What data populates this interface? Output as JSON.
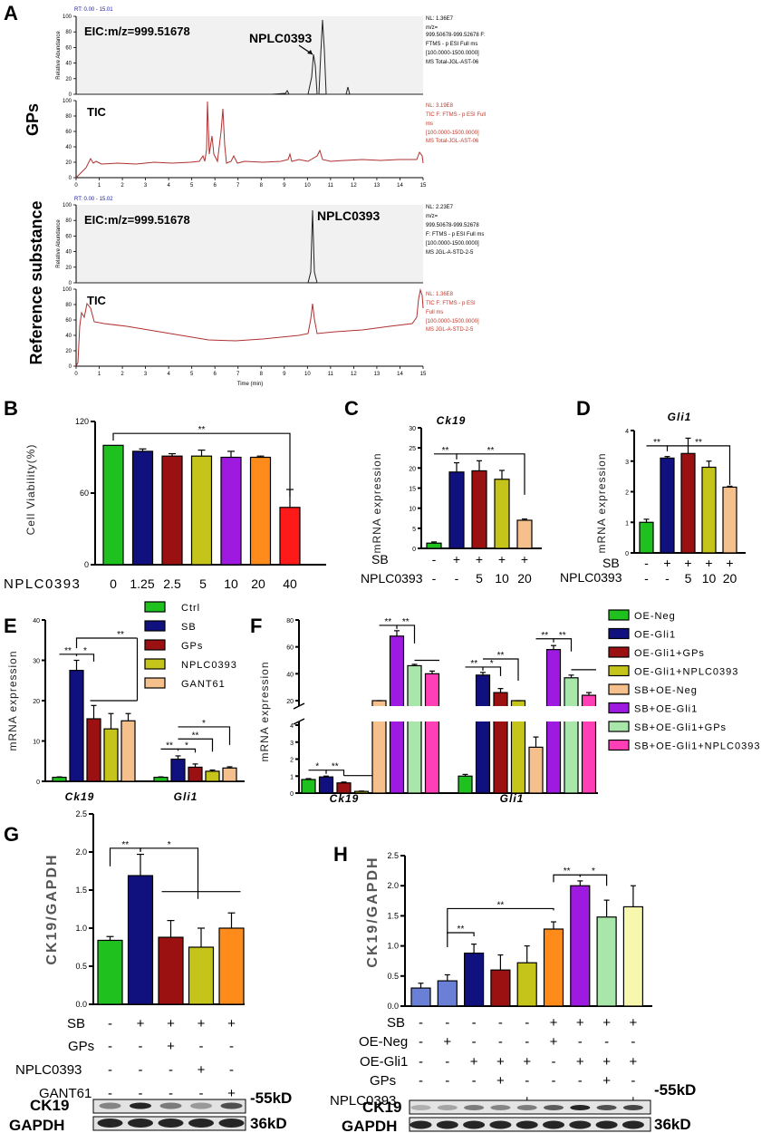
{
  "panelA": {
    "letter": "A",
    "gps_label": "GPs",
    "ref_label": "Reference substance",
    "rt1": "RT: 0.00 - 15.01",
    "rt2": "RT: 0.00 - 15.02",
    "eic_label": "EIC:m/z=999.51678",
    "tic_label": "TIC",
    "nplc_label": "NPLC0393",
    "yaxis_label": "Relative Abundance",
    "xaxis_label": "Time (min)",
    "y_ticks": [
      "0",
      "20",
      "40",
      "60",
      "80",
      "100"
    ],
    "x_ticks": [
      "0",
      "1",
      "2",
      "3",
      "4",
      "5",
      "6",
      "7",
      "8",
      "9",
      "10",
      "11",
      "12",
      "13",
      "14",
      "15"
    ],
    "info1": [
      "NL: 1.36E7",
      "m/z=",
      "999.50678-999.52678 F:",
      "FTMS - p ESI Full ms",
      "[100.0000-1500.0000]",
      "MS Total-JGL-AST-06"
    ],
    "info2": [
      "NL: 3.19E8",
      "TIC F: FTMS - p ESI Full",
      "ms",
      "[100.0000-1500.0000]",
      "MS Total-JGL-AST-06"
    ],
    "info3": [
      "NL: 2.23E7",
      "m/z=",
      "999.50678-999.52678",
      "F: FTMS - p ESI Full ms",
      "[100.0000-1500.0000]",
      "MS JGL-A-STD-2-5"
    ],
    "info4": [
      "NL: 1.36E8",
      "TIC F: FTMS - p ESI",
      "Full ms",
      "[100.0000-1500.0000]",
      "MS JGL-A-STD-2-5"
    ]
  },
  "colors": {
    "green": "#1fc11f",
    "navy": "#10107f",
    "darkred": "#9b1010",
    "olive": "#c4c41a",
    "orange": "#ff8c1a",
    "purple": "#9e1ae0",
    "peach": "#f5c08c",
    "red": "#ff1a1a",
    "mint": "#a9e6a9",
    "pink": "#ff3fb5",
    "lightyellow": "#f7f7ae",
    "slate": "#6a7fd6",
    "tic": "#b03030"
  },
  "labels": {
    "B": "B",
    "C": "C",
    "D": "D",
    "E": "E",
    "F": "F",
    "G": "G",
    "H": "H",
    "cell_viability": "Cell Viability(%)",
    "mrna": "mRNA expression",
    "ck19_gapdh": "CK19/GAPDH",
    "nplc": "NPLC0393",
    "sb": "SB",
    "gps": "GPs",
    "gant61": "GANT61",
    "oe_neg": "OE-Neg",
    "oe_gli1": "OE-Gli1",
    "ck19_gene": "Ck19",
    "gli1_gene": "Gli1",
    "ck19_blot": "CK19",
    "gapdh_blot": "GAPDH",
    "kd55": "-55kD",
    "kd36": "36kD",
    "sig2": "**",
    "sig1": "*",
    "plus": "+",
    "minus": "-"
  },
  "chart_data": [
    {
      "id": "B",
      "type": "bar",
      "title": "",
      "ylabel": "Cell Viability(%)",
      "xlabel": "NPLC0393",
      "categories": [
        "0",
        "1.25",
        "2.5",
        "5",
        "10",
        "20",
        "40"
      ],
      "values": [
        100,
        95,
        91,
        91,
        90,
        90,
        48
      ],
      "errors": [
        0,
        2,
        2,
        5,
        5,
        1,
        15
      ],
      "ylim": [
        0,
        120
      ],
      "yticks": [
        "0",
        "60",
        "120"
      ]
    },
    {
      "id": "C",
      "type": "bar",
      "title": "Ck19",
      "ylabel": "mRNA expression",
      "categories": [
        "-/-",
        "+/-",
        "+/5",
        "+/10",
        "+/20"
      ],
      "values": [
        1.3,
        19,
        19.3,
        17.2,
        7
      ],
      "errors": [
        0.3,
        2.3,
        2.5,
        2.2,
        0.3
      ],
      "ylim": [
        0,
        30
      ],
      "yticks": [
        "0",
        "5",
        "10",
        "15",
        "20",
        "25",
        "30"
      ]
    },
    {
      "id": "D",
      "type": "bar",
      "title": "Gli1",
      "ylabel": "mRNA expression",
      "categories": [
        "-/-",
        "+/-",
        "+/5",
        "+/10",
        "+/20"
      ],
      "values": [
        1,
        3.1,
        3.25,
        2.8,
        2.15
      ],
      "errors": [
        0.1,
        0.05,
        0.5,
        0.2,
        0.03
      ],
      "ylim": [
        0,
        4
      ],
      "yticks": [
        "0",
        "1",
        "2",
        "3",
        "4"
      ]
    },
    {
      "id": "E",
      "type": "bar",
      "ylabel": "mRNA expression",
      "groups": [
        "Ck19",
        "Gli1"
      ],
      "series": [
        {
          "name": "Ctrl",
          "values": [
            1,
            1
          ],
          "errors": [
            0.1,
            0.1
          ]
        },
        {
          "name": "SB",
          "values": [
            27.5,
            5.5
          ],
          "errors": [
            2.5,
            0.8
          ]
        },
        {
          "name": "GPs",
          "values": [
            15.5,
            3.5
          ],
          "errors": [
            3.3,
            0.8
          ]
        },
        {
          "name": "NPLC0393",
          "values": [
            13,
            2.5
          ],
          "errors": [
            3.8,
            0.3
          ]
        },
        {
          "name": "GANT61",
          "values": [
            15,
            3.3
          ],
          "errors": [
            1.8,
            0.3
          ]
        }
      ],
      "ylim": [
        0,
        40
      ],
      "yticks": [
        "0",
        "10",
        "20",
        "30",
        "40"
      ]
    },
    {
      "id": "F",
      "type": "bar",
      "ylabel": "mRNA expression",
      "groups": [
        "Ck19",
        "Gli1"
      ],
      "series": [
        {
          "name": "OE-Neg",
          "values": [
            0.8,
            1.0
          ],
          "errors": [
            0.05,
            0.1
          ]
        },
        {
          "name": "OE-Gli1",
          "values": [
            0.95,
            39
          ],
          "errors": [
            0.05,
            2
          ]
        },
        {
          "name": "OE-Gli1+GPs",
          "values": [
            0.6,
            26
          ],
          "errors": [
            0.05,
            3
          ]
        },
        {
          "name": "OE-Gli1+NPLC0393",
          "values": [
            0.1,
            17
          ],
          "errors": [
            0.02,
            2
          ]
        },
        {
          "name": "SB+OE-Neg",
          "values": [
            19,
            2.7
          ],
          "errors": [
            1,
            0.6
          ]
        },
        {
          "name": "SB+OE-Gli1",
          "values": [
            68,
            58
          ],
          "errors": [
            4,
            3
          ]
        },
        {
          "name": "SB+OE-Gli1+GPs",
          "values": [
            46,
            37
          ],
          "errors": [
            1,
            2
          ]
        },
        {
          "name": "SB+OE-Gli1+NPLC0393",
          "values": [
            40,
            24
          ],
          "errors": [
            2,
            2
          ]
        }
      ],
      "ylim_broken": [
        [
          0,
          4
        ],
        [
          20,
          80
        ]
      ],
      "yticks": [
        "0",
        "1",
        "2",
        "3",
        "4",
        "20",
        "40",
        "60",
        "80"
      ]
    },
    {
      "id": "G",
      "type": "bar",
      "ylabel": "CK19/GAPDH",
      "categories": [
        "Ctrl",
        "SB",
        "SB+GPs",
        "SB+NPLC0393",
        "SB+GANT61"
      ],
      "values": [
        0.84,
        1.69,
        0.88,
        0.75,
        1.0
      ],
      "errors": [
        0.05,
        0.28,
        0.22,
        0.25,
        0.2
      ],
      "ylim": [
        0,
        2.5
      ],
      "yticks": [
        "0.0",
        "0.5",
        "1.0",
        "1.5",
        "2.0",
        "2.5"
      ]
    },
    {
      "id": "H",
      "type": "bar",
      "ylabel": "CK19/GAPDH",
      "categories": [
        "Ctrl",
        "OE-Neg",
        "OE-Gli1",
        "OE-Gli1+GPs",
        "OE-Gli1+NPLC0393",
        "SB+OE-Neg",
        "SB+OE-Gli1",
        "SB+OE-Gli1+GPs",
        "SB+OE-Gli1+NPLC0393"
      ],
      "values": [
        0.3,
        0.42,
        0.88,
        0.6,
        0.72,
        1.28,
        2.0,
        1.48,
        1.65
      ],
      "errors": [
        0.08,
        0.1,
        0.15,
        0.25,
        0.28,
        0.12,
        0.08,
        0.28,
        0.35
      ],
      "ylim": [
        0,
        2.5
      ],
      "yticks": [
        "0.0",
        "0.5",
        "1.0",
        "1.5",
        "2.0",
        "2.5"
      ]
    }
  ],
  "rows": {
    "B_nplc": [
      "0",
      "1.25",
      "2.5",
      "5",
      "10",
      "20",
      "40"
    ],
    "CD_sb": [
      "-",
      "+",
      "+",
      "+",
      "+"
    ],
    "CD_nplc": [
      "-",
      "-",
      "5",
      "10",
      "20"
    ],
    "G_sb": [
      "-",
      "+",
      "+",
      "+",
      "+"
    ],
    "G_gps": [
      "-",
      "-",
      "+",
      "-",
      "-"
    ],
    "G_nplc": [
      "-",
      "-",
      "-",
      "+",
      "-"
    ],
    "G_gant": [
      "-",
      "-",
      "-",
      "-",
      "+"
    ],
    "H_sb": [
      "-",
      "-",
      "-",
      "-",
      "-",
      "+",
      "+",
      "+",
      "+"
    ],
    "H_oeneg": [
      "-",
      "+",
      "-",
      "-",
      "-",
      "+",
      "-",
      "-",
      "-"
    ],
    "H_oegli": [
      "-",
      "-",
      "+",
      "+",
      "+",
      "-",
      "+",
      "+",
      "+"
    ],
    "H_gps": [
      "-",
      "-",
      "-",
      "+",
      "-",
      "-",
      "-",
      "+",
      "-"
    ],
    "H_nplc": [
      "-",
      "-",
      "-",
      "-",
      "+",
      "-",
      "-",
      "-",
      "+"
    ]
  }
}
